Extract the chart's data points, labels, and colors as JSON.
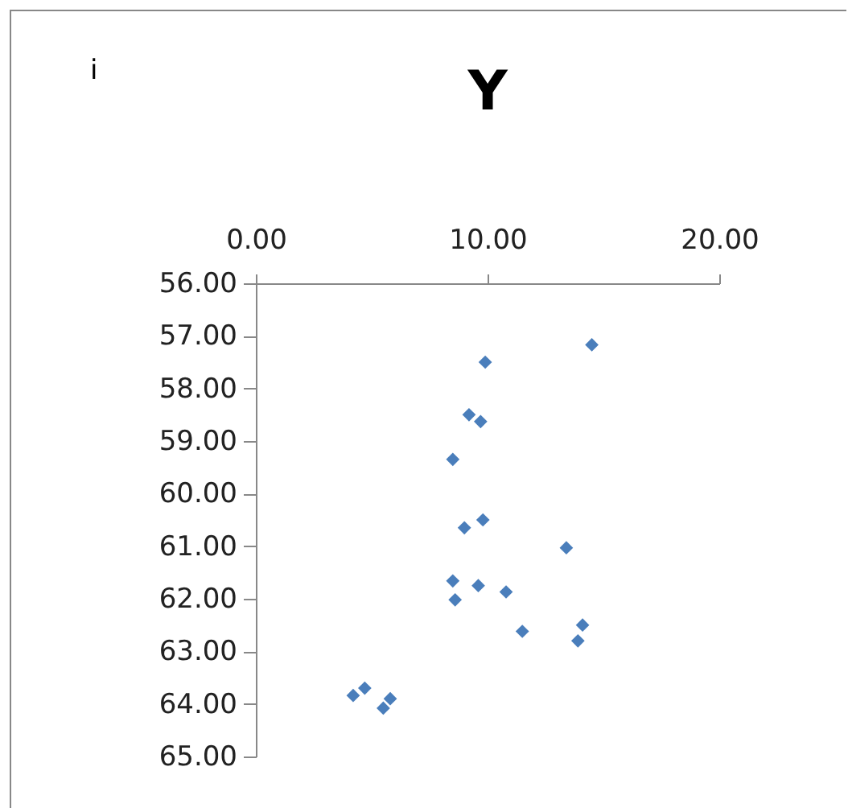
{
  "chart_data": {
    "type": "scatter",
    "title": "Y",
    "annotations": [
      "i"
    ],
    "x": [
      14.5,
      9.9,
      9.2,
      9.7,
      8.5,
      9.8,
      9.0,
      13.4,
      8.5,
      9.6,
      8.6,
      10.8,
      11.5,
      14.1,
      13.9,
      4.2,
      4.7,
      5.8,
      5.5
    ],
    "series": [
      {
        "color": "#4a7ebb",
        "values": [
          57.17,
          57.5,
          58.5,
          58.63,
          59.35,
          60.5,
          60.65,
          61.03,
          61.66,
          61.75,
          62.02,
          61.87,
          62.62,
          62.5,
          62.8,
          63.84,
          63.7,
          63.9,
          64.08
        ]
      }
    ],
    "xlim": [
      0,
      20
    ],
    "xticks": [
      {
        "value": 0,
        "label": "0.00"
      },
      {
        "value": 10,
        "label": "10.00"
      },
      {
        "value": 20,
        "label": "20.00"
      }
    ],
    "ylim": [
      65,
      56
    ],
    "yticks": [
      {
        "value": 56,
        "label": "56.00"
      },
      {
        "value": 57,
        "label": "57.00"
      },
      {
        "value": 58,
        "label": "58.00"
      },
      {
        "value": 59,
        "label": "59.00"
      },
      {
        "value": 60,
        "label": "60.00"
      },
      {
        "value": 61,
        "label": "61.00"
      },
      {
        "value": 62,
        "label": "62.00"
      },
      {
        "value": 63,
        "label": "63.00"
      },
      {
        "value": 64,
        "label": "64.00"
      },
      {
        "value": 65,
        "label": "65.00"
      }
    ],
    "grid": false,
    "marker": "diamond"
  }
}
